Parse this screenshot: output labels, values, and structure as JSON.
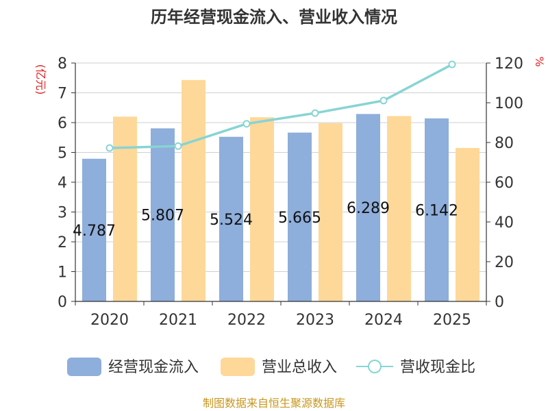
{
  "chart_data": {
    "type": "bar",
    "title": "历年经营现金流入、营业收入情况",
    "categories": [
      "2020",
      "2021",
      "2022",
      "2023",
      "2024",
      "2025"
    ],
    "left_axis": {
      "unit": "(亿元)",
      "ylim": [
        0,
        8
      ],
      "ticks": [
        0,
        1,
        2,
        3,
        4,
        5,
        6,
        7,
        8
      ]
    },
    "right_axis": {
      "unit": "%",
      "ylim": [
        0,
        120
      ],
      "ticks": [
        0,
        20,
        40,
        60,
        80,
        100,
        120
      ]
    },
    "series": [
      {
        "name": "经营现金流入",
        "kind": "bar",
        "axis": "left",
        "color": "#8eaedb",
        "values": [
          4.787,
          5.807,
          5.524,
          5.665,
          6.289,
          6.142
        ],
        "labels": [
          "4.787",
          "5.807",
          "5.524",
          "5.665",
          "6.289",
          "6.142"
        ]
      },
      {
        "name": "营业总收入",
        "kind": "bar",
        "axis": "left",
        "color": "#fed899",
        "values": [
          6.2,
          7.43,
          6.18,
          5.98,
          6.22,
          5.15
        ]
      },
      {
        "name": "营收现金比",
        "kind": "line",
        "axis": "right",
        "color": "#88d4d4",
        "values": [
          77.2,
          78.2,
          89.4,
          94.8,
          101.1,
          119.3
        ]
      }
    ],
    "grid": true,
    "legend": "bottom",
    "source": "制图数据来自恒生聚源数据库"
  }
}
